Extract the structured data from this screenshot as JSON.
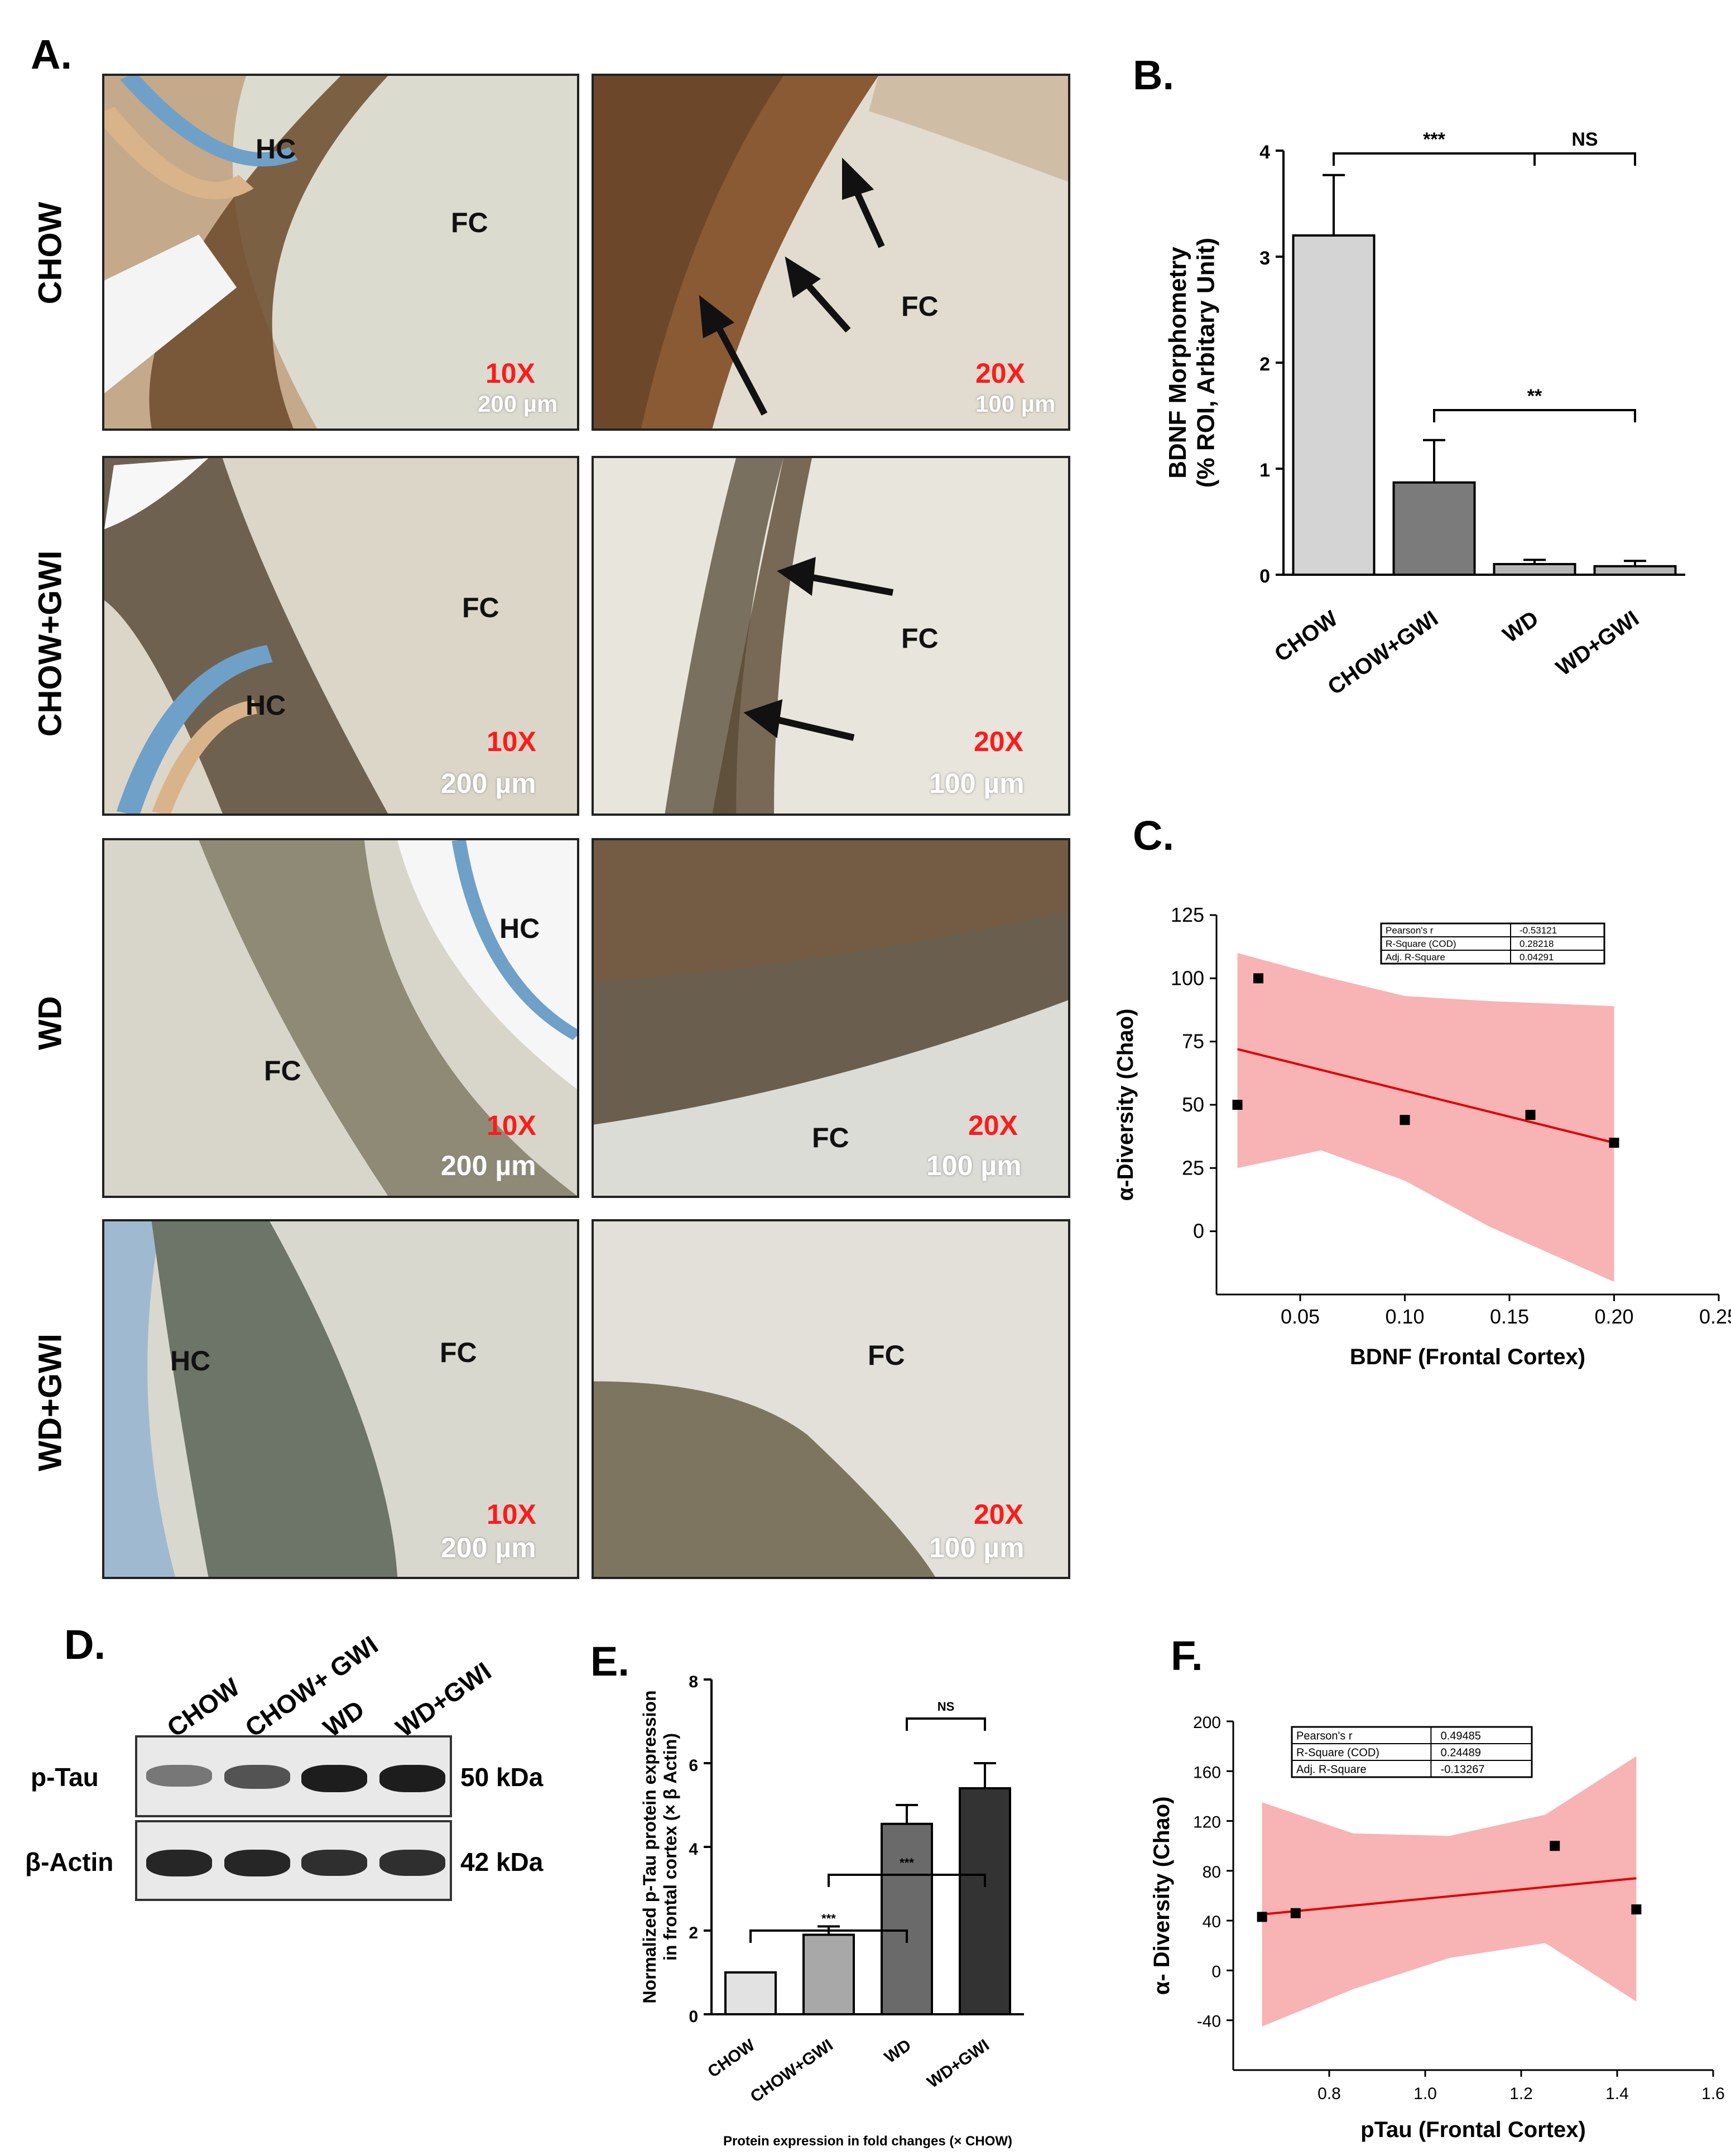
{
  "panels": {
    "a": "A.",
    "b": "B.",
    "c": "C.",
    "d": "D.",
    "e": "E.",
    "f": "F."
  },
  "micrographs": {
    "rows": [
      "CHOW",
      "CHOW+GWI",
      "WD",
      "WD+GWI"
    ],
    "left_mag": "10X",
    "left_scale": "200 µm",
    "right_mag": "20X",
    "right_scale": "100 µm",
    "hc": "HC",
    "fc": "FC"
  },
  "chart_b": {
    "type": "bar",
    "categories": [
      "CHOW",
      "CHOW+GWI",
      "WD",
      "WD+GWI"
    ],
    "values": [
      3.2,
      0.87,
      0.1,
      0.08
    ],
    "errors": [
      0.57,
      0.4,
      0.04,
      0.05
    ],
    "colors": [
      "#d4d4d4",
      "#7b7b7b",
      "#b5b5b5",
      "#b5b5b5"
    ],
    "ylabel_line1": "BDNF Morphometry",
    "ylabel_line2": "(% ROI, Arbitary Unit)",
    "ylim": [
      0,
      4
    ],
    "yticks": [
      0,
      1,
      2,
      3,
      4
    ],
    "sig": [
      {
        "label": "***",
        "from": 0,
        "to": 2
      },
      {
        "label": "NS",
        "from": 2,
        "to": 3
      },
      {
        "label": "**",
        "from": 1,
        "to": 3
      }
    ]
  },
  "chart_c": {
    "type": "scatter",
    "points": [
      [
        0.02,
        50
      ],
      [
        0.03,
        100
      ],
      [
        0.1,
        44
      ],
      [
        0.16,
        46
      ],
      [
        0.2,
        35
      ]
    ],
    "fit": [
      [
        0.02,
        72
      ],
      [
        0.2,
        35
      ]
    ],
    "band_upper": [
      [
        0.02,
        110
      ],
      [
        0.06,
        101
      ],
      [
        0.1,
        93
      ],
      [
        0.14,
        91
      ],
      [
        0.2,
        89
      ]
    ],
    "band_lower": [
      [
        0.02,
        25
      ],
      [
        0.06,
        32
      ],
      [
        0.1,
        20
      ],
      [
        0.14,
        2
      ],
      [
        0.2,
        -20
      ]
    ],
    "xlabel": "BDNF (Frontal Cortex)",
    "ylabel": "α-Diversity (Chao)",
    "xlim": [
      0.01,
      0.25
    ],
    "ylim": [
      -25,
      125
    ],
    "xticks": [
      0.05,
      0.1,
      0.15,
      0.2,
      0.25
    ],
    "xtick_labels": [
      "0.05",
      "0.10",
      "0.15",
      "0.20",
      "0.25"
    ],
    "yticks": [
      0,
      25,
      50,
      75,
      100,
      125
    ],
    "stats": [
      [
        "Pearson's r",
        "-0.53121"
      ],
      [
        "R-Square (COD)",
        "0.28218"
      ],
      [
        "Adj. R-Square",
        "0.04291"
      ]
    ]
  },
  "chart_d": {
    "lanes": [
      "CHOW",
      "CHOW+ GWI",
      "WD",
      "WD+GWI"
    ],
    "rows": [
      {
        "label": "p-Tau",
        "size": "50 kDa",
        "intensity": [
          0.45,
          0.65,
          0.95,
          0.95
        ]
      },
      {
        "label": "β-Actin",
        "size": "42 kDa",
        "intensity": [
          0.9,
          0.9,
          0.85,
          0.85
        ]
      }
    ]
  },
  "chart_e": {
    "type": "bar",
    "categories": [
      "CHOW",
      "CHOW+GWI",
      "WD",
      "WD+GWI"
    ],
    "values": [
      1.0,
      1.9,
      4.55,
      5.4
    ],
    "errors": [
      0.0,
      0.2,
      0.45,
      0.6
    ],
    "colors": [
      "#e2e2e2",
      "#a8a8a8",
      "#6a6a6a",
      "#333333"
    ],
    "ylabel_line1": "Normalized p-Tau protein expression",
    "ylabel_line2": "in frontal cortex (× β Actin)",
    "xlabel": "Protein expression in fold changes (× CHOW)",
    "ylim": [
      0,
      8
    ],
    "yticks": [
      0,
      2,
      4,
      6,
      8
    ],
    "sig": [
      {
        "label": "***",
        "from": 0,
        "to": 2
      },
      {
        "label": "***",
        "from": 1,
        "to": 3
      },
      {
        "label": "NS",
        "from": 2,
        "to": 3
      }
    ]
  },
  "chart_f": {
    "type": "scatter",
    "points": [
      [
        0.66,
        43
      ],
      [
        0.73,
        46
      ],
      [
        1.27,
        100
      ],
      [
        1.44,
        49
      ]
    ],
    "fit": [
      [
        0.66,
        45
      ],
      [
        1.44,
        74
      ]
    ],
    "band_upper": [
      [
        0.66,
        135
      ],
      [
        0.85,
        110
      ],
      [
        1.05,
        108
      ],
      [
        1.25,
        125
      ],
      [
        1.44,
        172
      ]
    ],
    "band_lower": [
      [
        0.66,
        -45
      ],
      [
        0.85,
        -15
      ],
      [
        1.05,
        10
      ],
      [
        1.25,
        22
      ],
      [
        1.44,
        -25
      ]
    ],
    "xlabel": "pTau (Frontal Cortex)",
    "ylabel": "α- Diversity (Chao)",
    "xlim": [
      0.6,
      1.6
    ],
    "ylim": [
      -80,
      200
    ],
    "xticks": [
      0.8,
      1.0,
      1.2,
      1.4,
      1.6
    ],
    "xtick_labels": [
      "0.8",
      "1.0",
      "1.2",
      "1.4",
      "1.6"
    ],
    "yticks": [
      -40,
      0,
      40,
      80,
      120,
      160,
      200
    ],
    "stats": [
      [
        "Pearson's r",
        "0.49485"
      ],
      [
        "R-Square (COD)",
        "0.24489"
      ],
      [
        "Adj. R-Square",
        "-0.13267"
      ]
    ]
  }
}
